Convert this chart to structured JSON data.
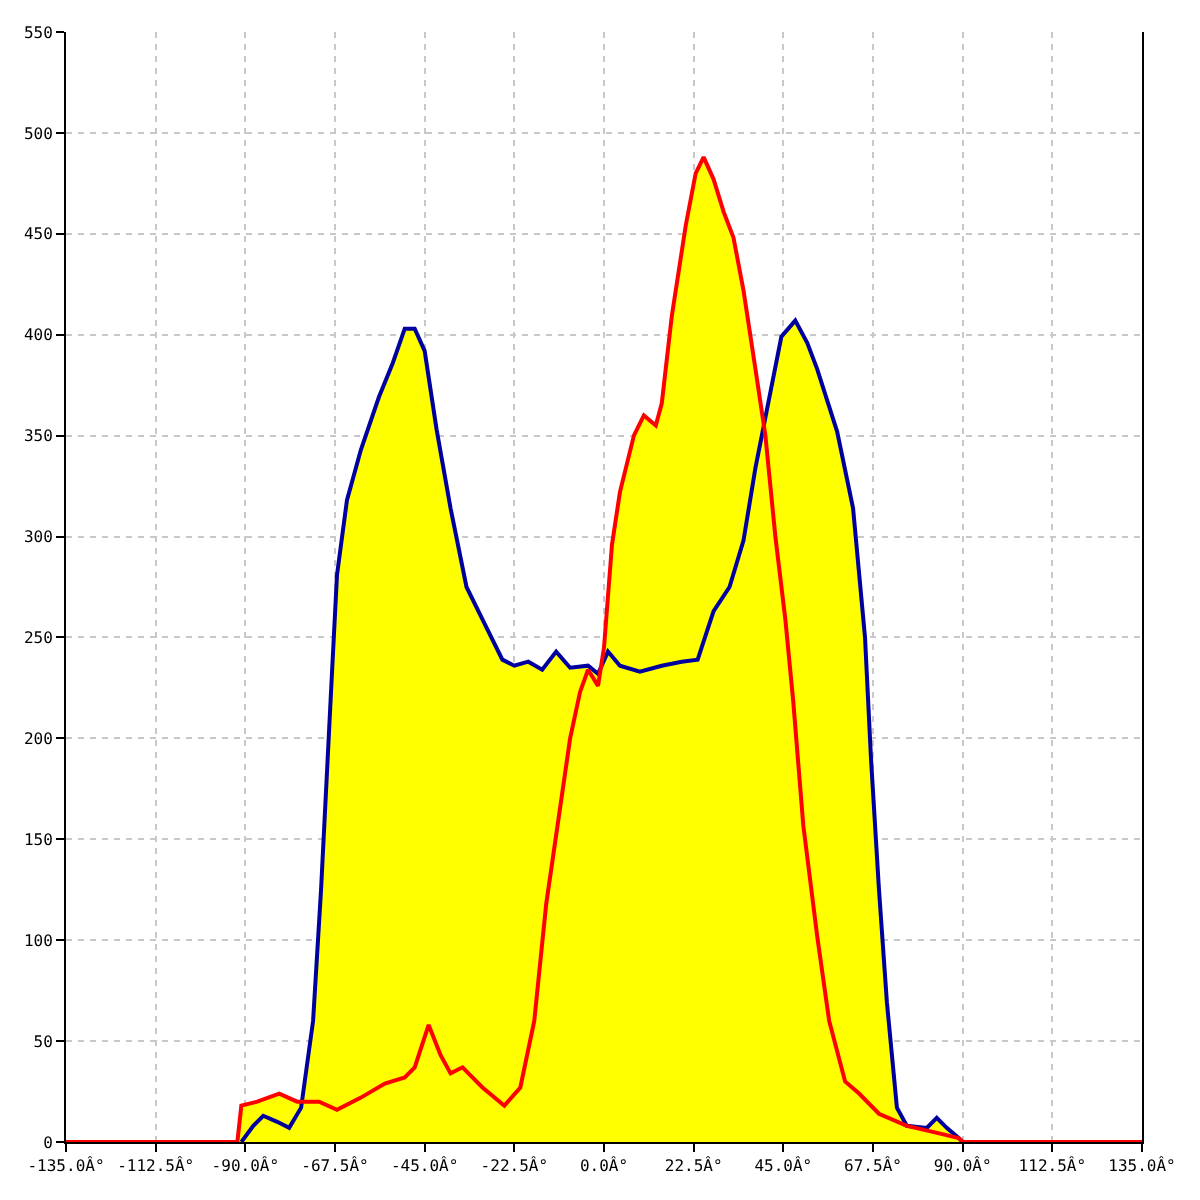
{
  "chart_data": {
    "type": "line",
    "xlim": [
      -135,
      135
    ],
    "ylim": [
      0,
      550
    ],
    "grid": true,
    "xticks": [
      {
        "value": -135,
        "label": "-135.0Â°"
      },
      {
        "value": -112.5,
        "label": "-112.5Â°"
      },
      {
        "value": -90,
        "label": "-90.0Â°"
      },
      {
        "value": -67.5,
        "label": "-67.5Â°"
      },
      {
        "value": -45,
        "label": "-45.0Â°"
      },
      {
        "value": -22.5,
        "label": "-22.5Â°"
      },
      {
        "value": 0,
        "label": "0.0Â°"
      },
      {
        "value": 22.5,
        "label": "22.5Â°"
      },
      {
        "value": 45,
        "label": "45.0Â°"
      },
      {
        "value": 67.5,
        "label": "67.5Â°"
      },
      {
        "value": 90,
        "label": "90.0Â°"
      },
      {
        "value": 112.5,
        "label": "112.5Â°"
      },
      {
        "value": 135,
        "label": "135.0Â°"
      }
    ],
    "yticks": [
      0,
      50,
      100,
      150,
      200,
      250,
      300,
      350,
      400,
      450,
      500,
      550
    ],
    "series": [
      {
        "color": "#0000a0",
        "x": [
          -91,
          -88,
          -85.5,
          -82,
          -79,
          -76,
          -73,
          -71,
          -68.5,
          -67,
          -64.5,
          -61,
          -56.5,
          -53,
          -50,
          -47.5,
          -45,
          -42,
          -38.5,
          -34.5,
          -30.5,
          -25.5,
          -22.5,
          -19,
          -15.5,
          -12,
          -8.5,
          -4,
          -1.5,
          1,
          4,
          9,
          14.5,
          19.5,
          23.5,
          27.5,
          31.5,
          35,
          38,
          41.5,
          44.5,
          48,
          51,
          53.5,
          58.5,
          62.5,
          65.5,
          67,
          69,
          71,
          73.5,
          76,
          81,
          83.5,
          86,
          89,
          90
        ],
        "values": [
          0,
          8,
          13,
          10,
          7,
          17,
          60,
          125,
          223,
          281,
          318,
          343,
          369,
          386,
          403,
          403,
          392,
          353,
          314,
          275,
          259,
          239,
          236,
          238,
          234,
          243,
          235,
          236,
          232,
          243,
          236,
          233,
          236,
          238,
          239,
          263,
          275,
          298,
          334,
          369,
          399,
          407,
          396,
          383,
          352,
          314,
          250,
          190,
          125,
          69,
          17,
          8,
          7,
          12,
          7,
          2,
          0
        ]
      },
      {
        "color": "#ff0000",
        "x": [
          -135,
          -92,
          -91,
          -87,
          -81.5,
          -77,
          -71.5,
          -67,
          -61,
          -55,
          -50,
          -47.5,
          -44,
          -41,
          -38.5,
          -35.5,
          -30.5,
          -25,
          -21,
          -17.5,
          -14.5,
          -8.5,
          -6,
          -4,
          -1.5,
          0,
          2,
          4,
          7.5,
          10,
          13,
          14.5,
          17,
          20.5,
          23,
          25,
          27.5,
          30,
          32.5,
          35,
          38,
          40.5,
          43,
          45.5,
          47.5,
          50,
          53.5,
          56.5,
          60.5,
          64,
          69,
          76,
          82.5,
          89,
          90,
          135
        ],
        "values": [
          0,
          0,
          18,
          20,
          24,
          20,
          20,
          16,
          22,
          29,
          32,
          37,
          58,
          43,
          34,
          37,
          27,
          18,
          27,
          60,
          118,
          200,
          223,
          234,
          226,
          245,
          296,
          322,
          350,
          360,
          355,
          366,
          409,
          454,
          480,
          488,
          477,
          461,
          448,
          422,
          383,
          350,
          300,
          259,
          218,
          157,
          102,
          60,
          30,
          24,
          14,
          8,
          5,
          2,
          0,
          0
        ]
      }
    ]
  }
}
